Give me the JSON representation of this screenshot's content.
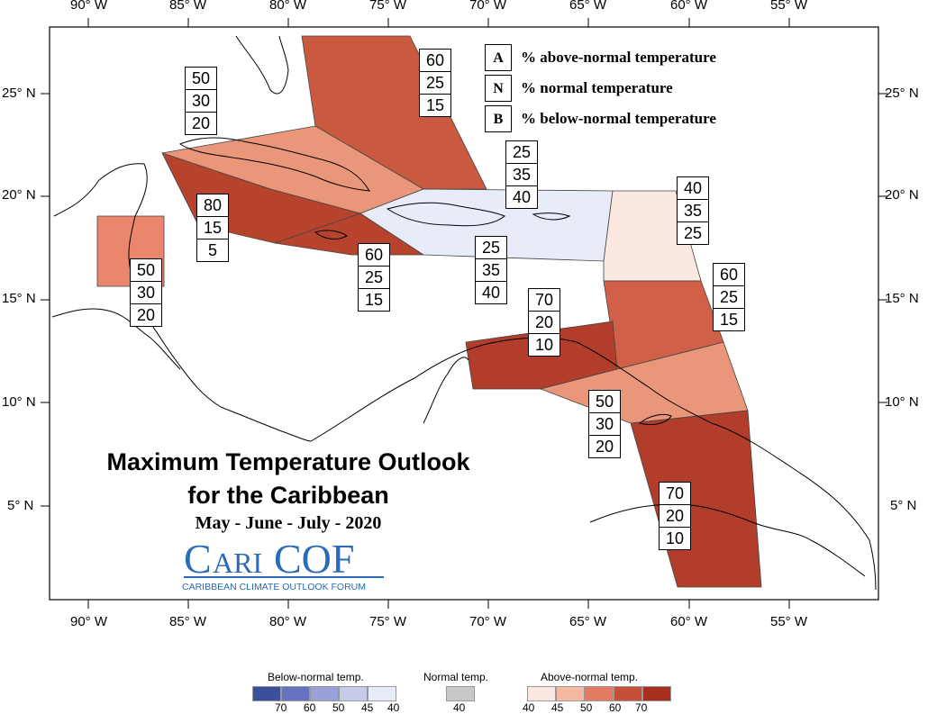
{
  "map": {
    "top_lon_labels": [
      "90° W",
      "85° W",
      "80° W",
      "75° W",
      "70° W",
      "65° W",
      "60° W",
      "55° W"
    ],
    "bottom_lon_labels": [
      "90° W",
      "85° W",
      "80° W",
      "75° W",
      "70° W",
      "65° W",
      "60° W",
      "55° W"
    ],
    "left_lat_labels": [
      "25° N",
      "20° N",
      "15° N",
      "10° N",
      "5° N"
    ],
    "right_lat_labels": [
      "25° N",
      "20° N",
      "15° N",
      "10° N",
      "5° N"
    ]
  },
  "legend_key": [
    {
      "letter": "A",
      "text": "% above-normal temperature"
    },
    {
      "letter": "N",
      "text": "% normal temperature"
    },
    {
      "letter": "B",
      "text": "% below-normal temperature"
    }
  ],
  "regions": [
    {
      "name": "bahamas",
      "a": "60",
      "n": "25",
      "b": "15",
      "color": "#c95a40"
    },
    {
      "name": "cuba",
      "a": "50",
      "n": "30",
      "b": "20",
      "color": "#e9967a"
    },
    {
      "name": "caribbean-west",
      "a": "80",
      "n": "15",
      "b": "5",
      "color": "#b8432d"
    },
    {
      "name": "jamaica",
      "a": "60",
      "n": "25",
      "b": "15",
      "color": "#b8432d"
    },
    {
      "name": "belize",
      "a": "50",
      "n": "30",
      "b": "20",
      "color": "#e9866c"
    },
    {
      "name": "hispaniola-puerto-rico",
      "a": "25",
      "n": "35",
      "b": "40",
      "color": "#e8ecf8"
    },
    {
      "name": "turks-caicos",
      "a": "25",
      "n": "35",
      "b": "40",
      "color": "#e8ecf8"
    },
    {
      "name": "leeward-islands",
      "a": "40",
      "n": "35",
      "b": "25",
      "color": "#fbe8e0"
    },
    {
      "name": "windward-islands",
      "a": "60",
      "n": "25",
      "b": "15",
      "color": "#d06048"
    },
    {
      "name": "abc-islands",
      "a": "70",
      "n": "20",
      "b": "10",
      "color": "#b13d2a"
    },
    {
      "name": "trinidad-tobago",
      "a": "50",
      "n": "30",
      "b": "20",
      "color": "#e9967a"
    },
    {
      "name": "guianas",
      "a": "70",
      "n": "20",
      "b": "10",
      "color": "#b13d2a"
    }
  ],
  "title": {
    "line1": "Maximum Temperature Outlook",
    "line2": "for the Caribbean",
    "period": "May - June - July - 2020"
  },
  "logo": {
    "name": "CariCOF",
    "tagline": "CARIBBEAN CLIMATE OUTLOOK FORUM",
    "color": "#2a6ab8"
  },
  "color_scale": {
    "below": {
      "title": "Below-normal temp.",
      "ticks": [
        "70",
        "60",
        "50",
        "45",
        "40"
      ],
      "colors": [
        "#3c4f9a",
        "#6573c0",
        "#9aa1d8",
        "#c5cbe9",
        "#e8ecf8"
      ]
    },
    "normal": {
      "title": "Normal temp.",
      "ticks": [
        "40"
      ],
      "colors": [
        "#c8c8c8"
      ]
    },
    "above": {
      "title": "Above-normal temp.",
      "ticks": [
        "40",
        "45",
        "50",
        "60",
        "70"
      ],
      "colors": [
        "#fbe8e0",
        "#f5b8a0",
        "#e37b62",
        "#c4503a",
        "#a8301f"
      ]
    }
  }
}
